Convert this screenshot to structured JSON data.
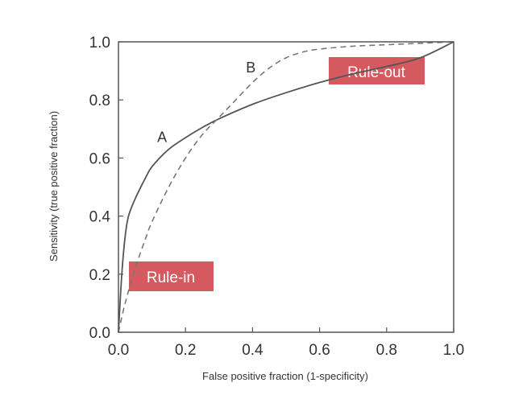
{
  "chart_data": {
    "type": "line",
    "title": "",
    "xlabel": "False positive fraction (1-specificity)",
    "ylabel": "Sensitivity (true positive fraction)",
    "xlim": [
      0,
      1
    ],
    "ylim": [
      0,
      1
    ],
    "x_ticks": [
      "0.0",
      "0.2",
      "0.4",
      "0.6",
      "0.8",
      "1.0"
    ],
    "y_ticks": [
      "0.0",
      "0.2",
      "0.4",
      "0.6",
      "0.8",
      "1.0"
    ],
    "grid": false,
    "series": [
      {
        "name": "A",
        "style": "solid",
        "color": "#555555",
        "x": [
          0,
          0.01,
          0.02,
          0.03,
          0.05,
          0.08,
          0.1,
          0.15,
          0.2,
          0.25,
          0.3,
          0.4,
          0.5,
          0.6,
          0.7,
          0.8,
          0.9,
          1.0
        ],
        "y": [
          0,
          0.2,
          0.33,
          0.4,
          0.46,
          0.53,
          0.57,
          0.63,
          0.67,
          0.705,
          0.735,
          0.785,
          0.825,
          0.86,
          0.89,
          0.915,
          0.945,
          1.0
        ]
      },
      {
        "name": "B",
        "style": "dashed",
        "color": "#777777",
        "x": [
          0,
          0.02,
          0.05,
          0.08,
          0.1,
          0.15,
          0.2,
          0.25,
          0.3,
          0.35,
          0.4,
          0.45,
          0.5,
          0.55,
          0.6,
          0.7,
          0.8,
          0.9,
          1.0
        ],
        "y": [
          0,
          0.1,
          0.22,
          0.32,
          0.38,
          0.5,
          0.6,
          0.68,
          0.74,
          0.8,
          0.86,
          0.91,
          0.945,
          0.965,
          0.975,
          0.985,
          0.99,
          0.995,
          1.0
        ]
      }
    ],
    "annotations": [
      {
        "text": "Rule-in",
        "anchor": "bottom-left"
      },
      {
        "text": "Rule-out",
        "anchor": "top-right"
      }
    ],
    "callout_color": "#d55a5f"
  }
}
